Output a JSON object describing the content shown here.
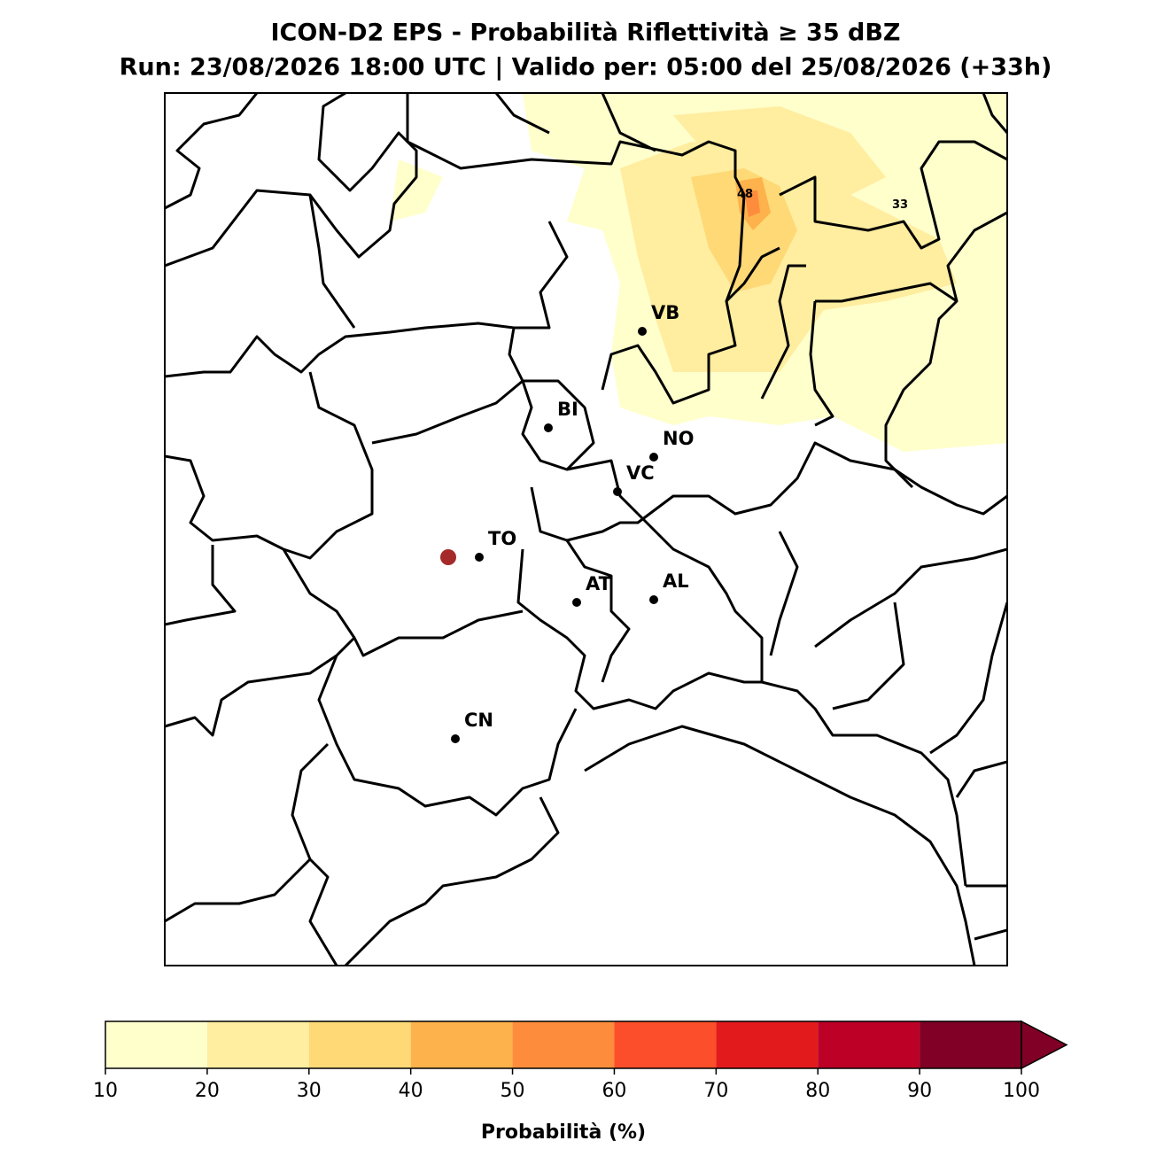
{
  "title": "ICON-D2 EPS - Probabilità Riflettività ≥ 35 dBZ",
  "subtitle": "Run: 23/08/2026 18:00 UTC | Valido per: 05:00 del 25/08/2026 (+33h)",
  "cities": [
    "VB",
    "BI",
    "NO",
    "VC",
    "TO",
    "AT",
    "AL",
    "CN"
  ],
  "contour_labels": [
    48,
    33
  ],
  "colorbar": {
    "label": "Probabilità (%)",
    "ticks": [
      10,
      20,
      30,
      40,
      50,
      60,
      70,
      80,
      90,
      100
    ],
    "colors": [
      "#ffffcc",
      "#ffeda0",
      "#fed976",
      "#feb24c",
      "#fd8d3c",
      "#fc4e2a",
      "#e31a1c",
      "#bd0026",
      "#800026"
    ],
    "extend_color": "#800026"
  }
}
